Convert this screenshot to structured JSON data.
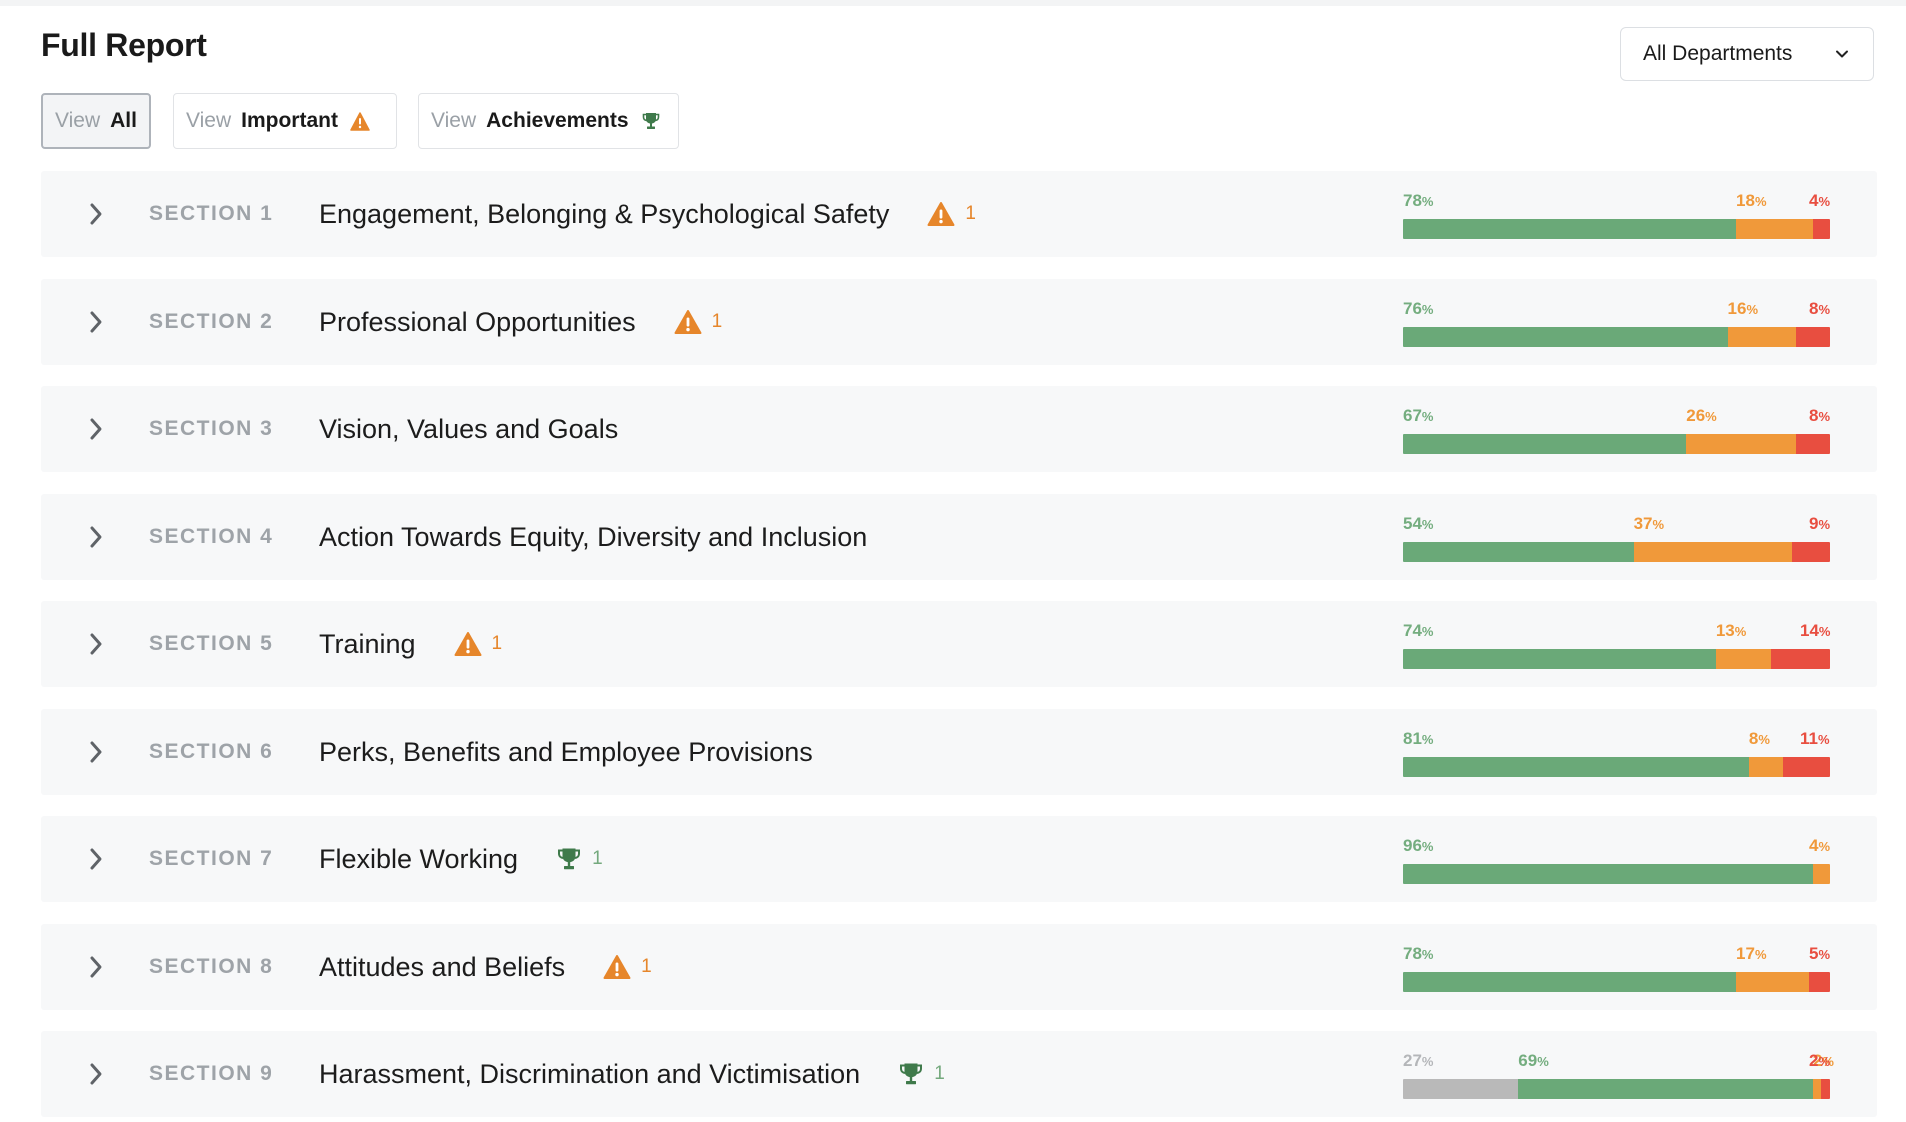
{
  "page": {
    "title": "Full Report"
  },
  "department_select": {
    "value": "All Departments"
  },
  "filters": [
    {
      "prefix": "View",
      "label": "All",
      "icon": "none",
      "active": true
    },
    {
      "prefix": "View",
      "label": "Important",
      "icon": "warning-icon",
      "active": false
    },
    {
      "prefix": "View",
      "label": "Achievements",
      "icon": "trophy-icon",
      "active": false
    }
  ],
  "colors": {
    "positive": "#6aa978",
    "neutral": "#f0993a",
    "negative": "#e84e40",
    "na": "#b9b9b9",
    "warning": "#e6862b",
    "trophy": "#3f7a4b"
  },
  "sections": [
    {
      "label": "SECTION 1",
      "title": "Engagement, Belonging & Psychological Safety",
      "flag": {
        "type": "warning",
        "count": "1"
      },
      "bar": [
        {
          "kind": "positive",
          "value": 78
        },
        {
          "kind": "neutral",
          "value": 18
        },
        {
          "kind": "negative",
          "value": 4
        }
      ]
    },
    {
      "label": "SECTION 2",
      "title": "Professional Opportunities",
      "flag": {
        "type": "warning",
        "count": "1"
      },
      "bar": [
        {
          "kind": "positive",
          "value": 76
        },
        {
          "kind": "neutral",
          "value": 16
        },
        {
          "kind": "negative",
          "value": 8
        }
      ]
    },
    {
      "label": "SECTION 3",
      "title": "Vision, Values and Goals",
      "flag": null,
      "bar": [
        {
          "kind": "positive",
          "value": 67
        },
        {
          "kind": "neutral",
          "value": 26
        },
        {
          "kind": "negative",
          "value": 8
        }
      ]
    },
    {
      "label": "SECTION 4",
      "title": "Action Towards Equity, Diversity and Inclusion",
      "flag": null,
      "bar": [
        {
          "kind": "positive",
          "value": 54
        },
        {
          "kind": "neutral",
          "value": 37
        },
        {
          "kind": "negative",
          "value": 9
        }
      ]
    },
    {
      "label": "SECTION 5",
      "title": "Training",
      "flag": {
        "type": "warning",
        "count": "1"
      },
      "bar": [
        {
          "kind": "positive",
          "value": 74
        },
        {
          "kind": "neutral",
          "value": 13
        },
        {
          "kind": "negative",
          "value": 14
        }
      ]
    },
    {
      "label": "SECTION 6",
      "title": "Perks, Benefits and Employee Provisions",
      "flag": null,
      "bar": [
        {
          "kind": "positive",
          "value": 81
        },
        {
          "kind": "neutral",
          "value": 8
        },
        {
          "kind": "negative",
          "value": 11
        }
      ]
    },
    {
      "label": "SECTION 7",
      "title": "Flexible Working",
      "flag": {
        "type": "trophy",
        "count": "1"
      },
      "bar": [
        {
          "kind": "positive",
          "value": 96
        },
        {
          "kind": "neutral",
          "value": 4
        }
      ]
    },
    {
      "label": "SECTION 8",
      "title": "Attitudes and Beliefs",
      "flag": {
        "type": "warning",
        "count": "1"
      },
      "bar": [
        {
          "kind": "positive",
          "value": 78
        },
        {
          "kind": "neutral",
          "value": 17
        },
        {
          "kind": "negative",
          "value": 5
        }
      ]
    },
    {
      "label": "SECTION 9",
      "title": "Harassment, Discrimination and Victimisation",
      "flag": {
        "type": "trophy",
        "count": "1"
      },
      "bar": [
        {
          "kind": "na",
          "value": 27
        },
        {
          "kind": "positive",
          "value": 69
        },
        {
          "kind": "neutral",
          "value": 2
        },
        {
          "kind": "negative",
          "value": 2
        }
      ]
    }
  ]
}
